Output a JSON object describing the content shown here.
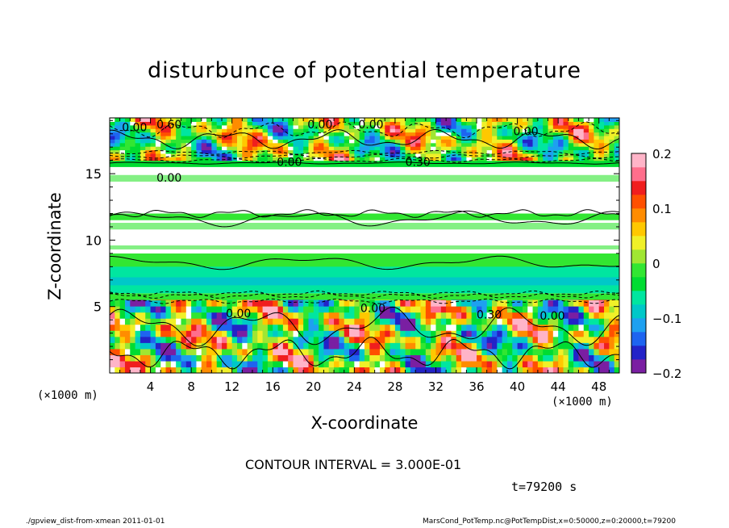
{
  "chart_data": {
    "type": "heatmap",
    "title": "disturbunce of potential temperature",
    "xlabel": "X-coordinate",
    "ylabel": "Z-coordinate",
    "x_unit": "(×1000 m)",
    "xlim": [
      0,
      50
    ],
    "ylim": [
      0,
      19.2
    ],
    "x_ticks": [
      4,
      8,
      12,
      16,
      20,
      24,
      28,
      32,
      36,
      40,
      44,
      48
    ],
    "y_ticks": [
      5,
      10,
      15
    ],
    "colorbar": {
      "range": [
        -0.2,
        0.2
      ],
      "tick_labels": [
        "0.2",
        "0.1",
        "0",
        "−0.1",
        "−0.2"
      ],
      "tick_values": [
        0.2,
        0.1,
        0,
        -0.1,
        -0.2
      ],
      "colors": [
        "#7a1fa2",
        "#2323c8",
        "#1e64f0",
        "#1ea0f0",
        "#00c8c8",
        "#00e6a0",
        "#00dc32",
        "#32e632",
        "#a0e632",
        "#f0f028",
        "#ffc800",
        "#ff8c00",
        "#ff5000",
        "#f01e1e",
        "#ff6e8c",
        "#ffb4c8"
      ]
    },
    "contour_labels": [
      "0.00",
      "0.60",
      "0.00",
      "0.00",
      "0.30",
      "0.00",
      "0.00",
      "0.00",
      "0.30",
      "0.00",
      "0.00",
      "0.00"
    ],
    "bands": [
      {
        "z_range": [
          0,
          5.5
        ],
        "pattern": "strong-mixed"
      },
      {
        "z_range": [
          5.5,
          6.0
        ],
        "value": -0.02
      },
      {
        "z_range": [
          6.0,
          7.5
        ],
        "value": -0.06
      },
      {
        "z_range": [
          7.5,
          9.0
        ],
        "value": -0.02
      },
      {
        "z_range": [
          9.0,
          11.5
        ],
        "value": 0.0
      },
      {
        "z_range": [
          11.5,
          12.0
        ],
        "value": -0.02
      },
      {
        "z_range": [
          12.0,
          15.5
        ],
        "value": 0.0
      },
      {
        "z_range": [
          15.5,
          16.0
        ],
        "value": -0.04
      },
      {
        "z_range": [
          16.0,
          19.2
        ],
        "pattern": "strong-mixed"
      }
    ]
  },
  "contour_interval": "CONTOUR INTERVAL = 3.000E-01",
  "time_label": "t=79200 s",
  "footer_left": "./gpview_dist-from-xmean   2011-01-01",
  "footer_right": "MarsCond_PotTemp.nc@PotTempDist,x=0:50000,z=0:20000,t=79200"
}
